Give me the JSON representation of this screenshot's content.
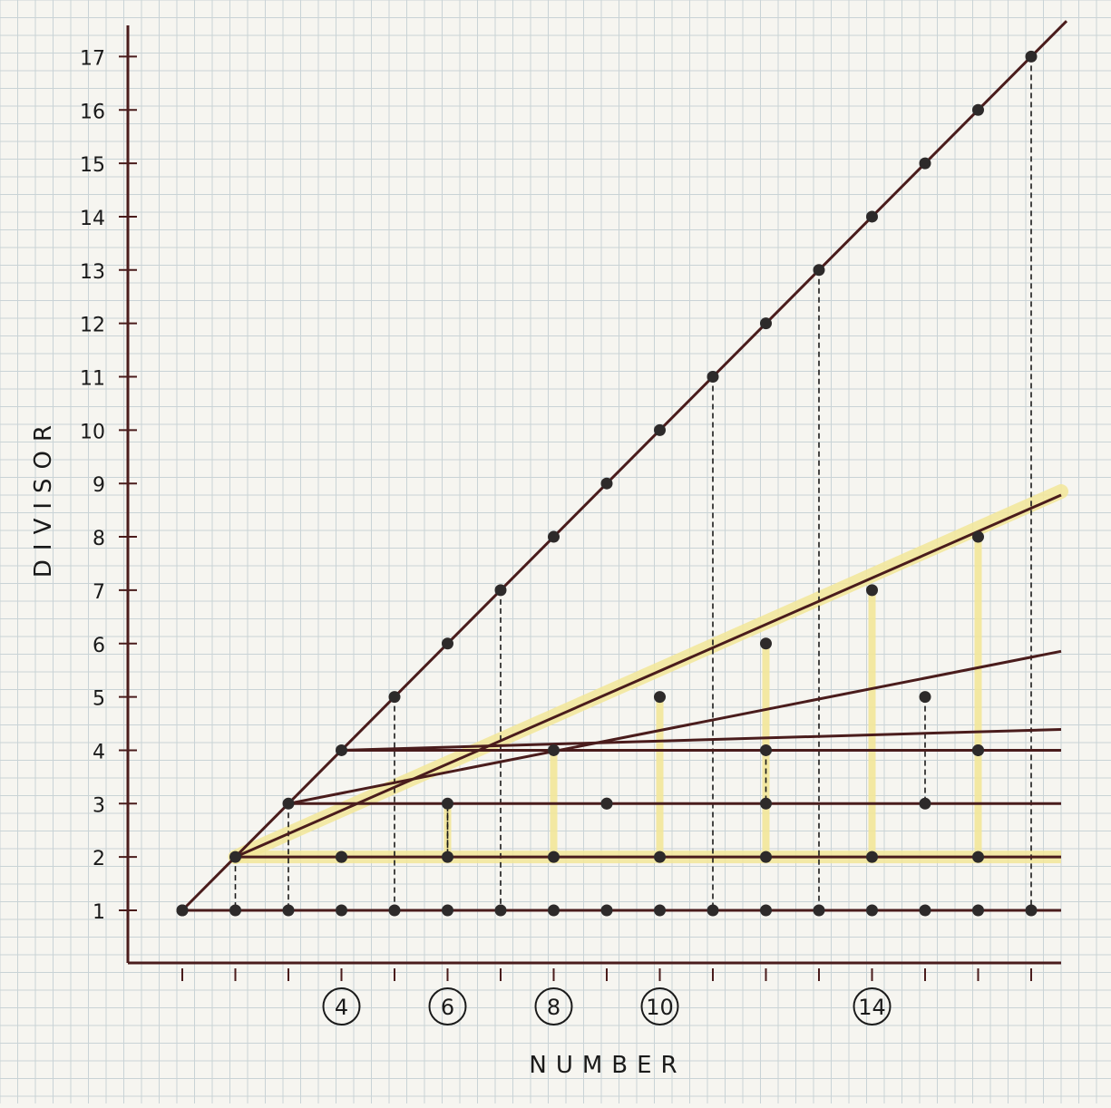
{
  "diagram": {
    "x_axis_label": "NUMBER",
    "y_axis_label": "DIVISOR",
    "x_range": [
      1,
      17
    ],
    "y_range": [
      1,
      17
    ],
    "y_ticks": [
      "1",
      "2",
      "3",
      "4",
      "5",
      "6",
      "7",
      "8",
      "9",
      "10",
      "11",
      "12",
      "13",
      "14",
      "15",
      "16",
      "17"
    ],
    "circled_numbers": [
      {
        "value": 4,
        "label": "4"
      },
      {
        "value": 6,
        "label": "6"
      },
      {
        "value": 8,
        "label": "8"
      },
      {
        "value": 10,
        "label": "10"
      },
      {
        "value": 14,
        "label": "14"
      }
    ],
    "divisor_lines": [
      {
        "divisor": 1,
        "highlighted": false
      },
      {
        "divisor": 2,
        "highlighted": true
      },
      {
        "divisor": 3,
        "highlighted": false
      },
      {
        "divisor": 4,
        "highlighted": false
      }
    ],
    "ink_color": "#4a1c1c",
    "highlight_color": "#f3e79a",
    "grid_color": "#c9d3d6",
    "paper_color": "#f6f5f0"
  }
}
